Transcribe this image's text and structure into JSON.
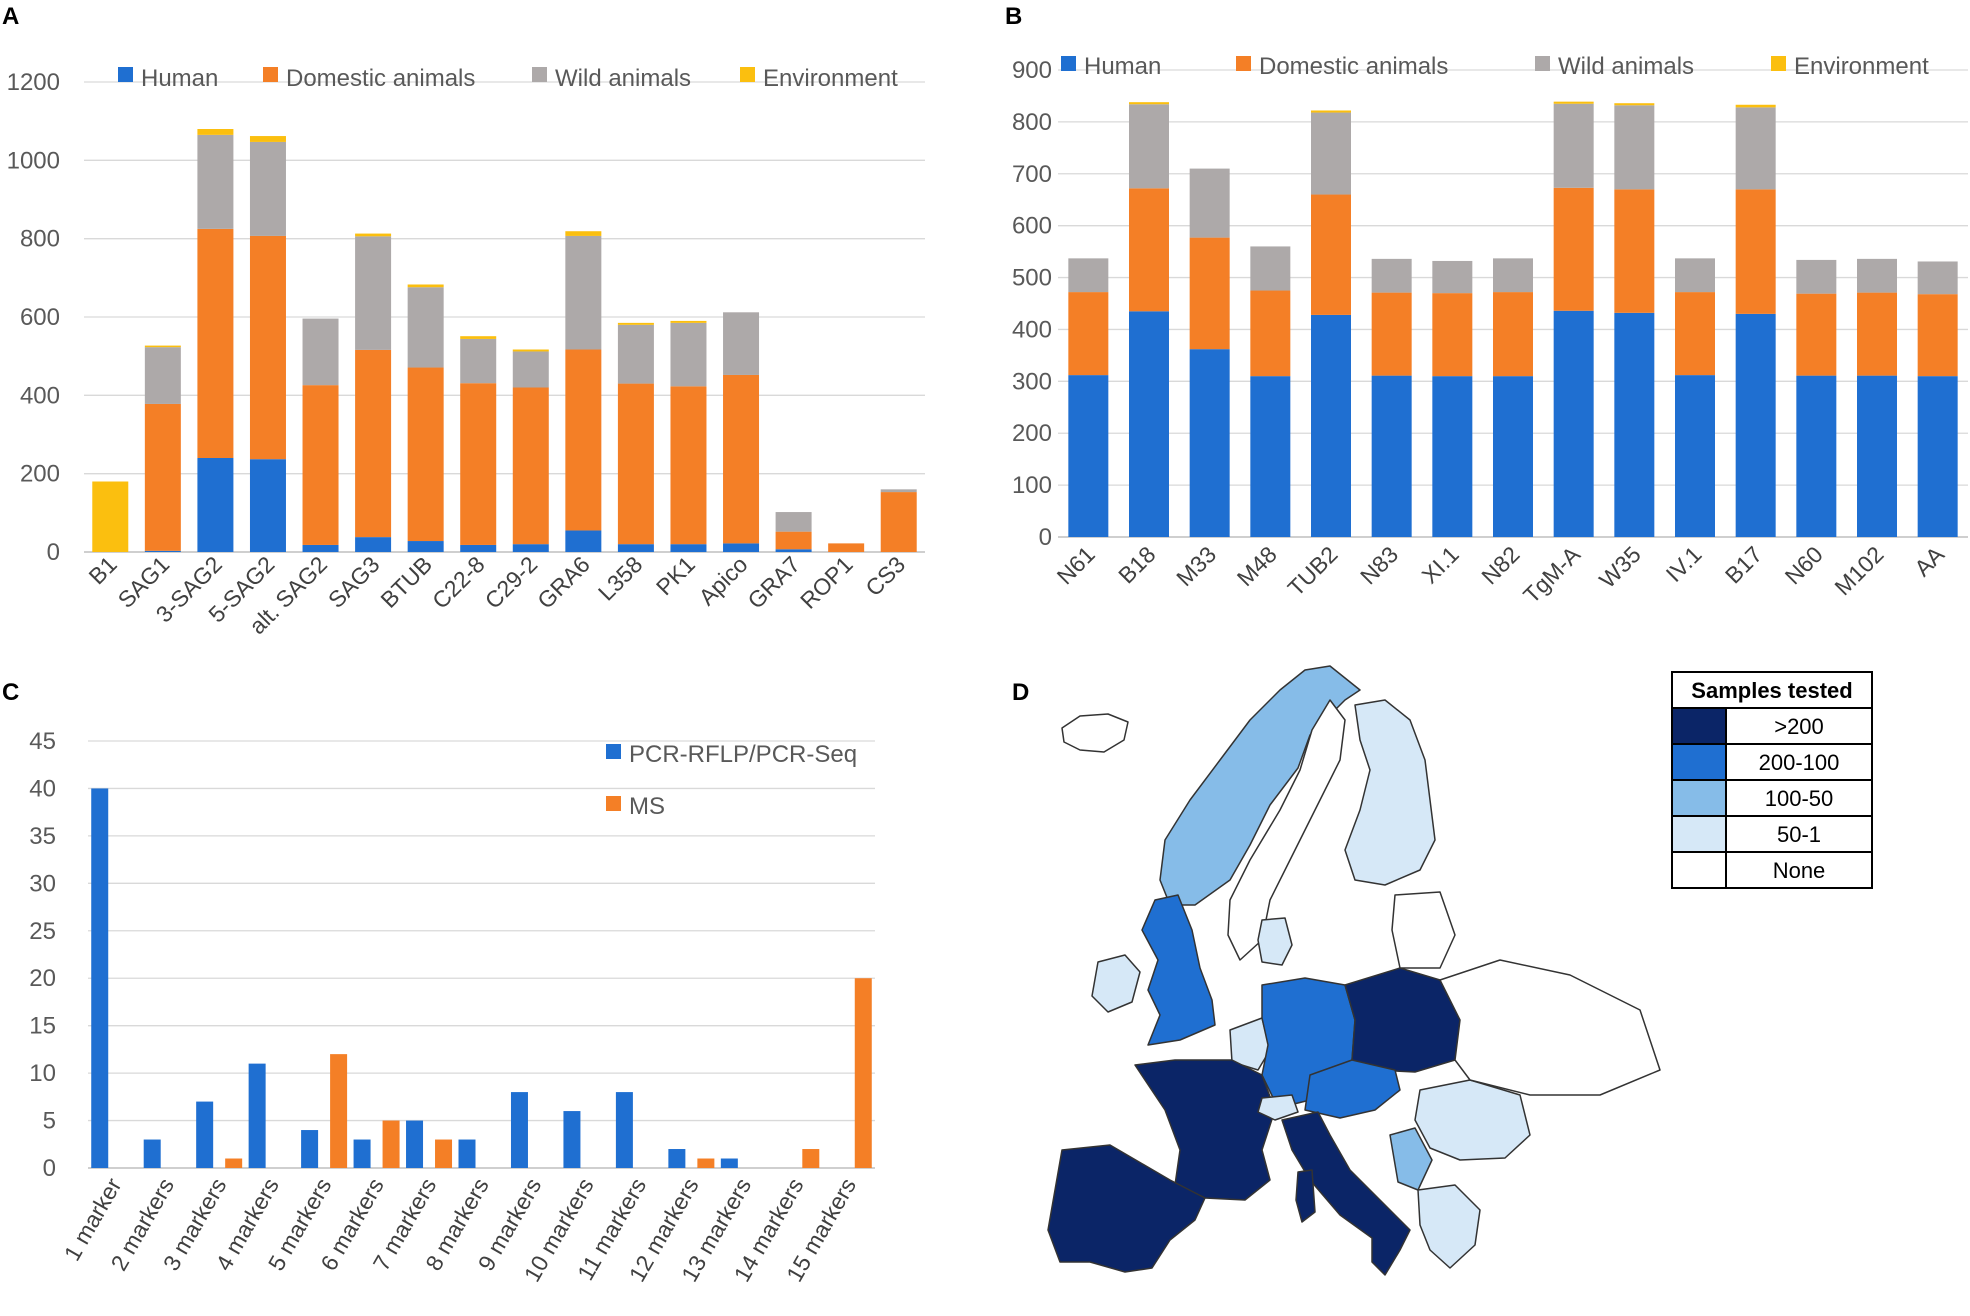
{
  "colors": {
    "human": "#1f6fd1",
    "domestic": "#f47f26",
    "wild": "#ada9a9",
    "environment": "#fbbf0f",
    "pcr": "#1f6fd1",
    "ms": "#f47f26",
    "map_gt200": "#0b2567",
    "map_200_100": "#1f6fd1",
    "map_100_50": "#86bce8",
    "map_50_1": "#d6e8f7",
    "map_none": "#ffffff"
  },
  "chart_data": [
    {
      "panel": "A",
      "type": "bar",
      "stacked": true,
      "ylim": [
        0,
        1200
      ],
      "yticks": [
        0,
        200,
        400,
        600,
        800,
        1000,
        1200
      ],
      "categories": [
        "B1",
        "SAG1",
        "3-SAG2",
        "5-SAG2",
        "alt. SAG2",
        "SAG3",
        "BTUB",
        "C22-8",
        "C29-2",
        "GRA6",
        "L358",
        "PK1",
        "Apico",
        "GRA7",
        "ROP1",
        "CS3"
      ],
      "series": [
        {
          "name": "Human",
          "key": "human",
          "values": [
            0,
            3,
            240,
            237,
            18,
            38,
            28,
            18,
            20,
            55,
            20,
            20,
            22,
            7,
            0,
            0
          ]
        },
        {
          "name": "Domestic animals",
          "key": "domestic",
          "values": [
            0,
            375,
            585,
            570,
            408,
            478,
            443,
            413,
            400,
            462,
            410,
            403,
            430,
            45,
            22,
            153
          ]
        },
        {
          "name": "Wild animals",
          "key": "wild",
          "values": [
            0,
            145,
            240,
            240,
            170,
            290,
            205,
            113,
            92,
            290,
            150,
            162,
            160,
            50,
            0,
            7
          ]
        },
        {
          "name": "Environment",
          "key": "environment",
          "values": [
            180,
            4,
            15,
            15,
            0,
            7,
            7,
            7,
            5,
            12,
            5,
            5,
            0,
            0,
            0,
            0
          ]
        }
      ]
    },
    {
      "panel": "B",
      "type": "bar",
      "stacked": true,
      "ylim": [
        0,
        900
      ],
      "yticks": [
        0,
        100,
        200,
        300,
        400,
        500,
        600,
        700,
        800,
        900
      ],
      "categories": [
        "N61",
        "B18",
        "M33",
        "M48",
        "TUB2",
        "N83",
        "XI.1",
        "N82",
        "TgM-A",
        "W35",
        "IV.1",
        "B17",
        "N60",
        "M102",
        "AA"
      ],
      "series": [
        {
          "name": "Human",
          "key": "human",
          "values": [
            312,
            435,
            362,
            310,
            428,
            311,
            310,
            310,
            436,
            432,
            312,
            430,
            311,
            311,
            310
          ]
        },
        {
          "name": "Domestic animals",
          "key": "domestic",
          "values": [
            160,
            237,
            215,
            165,
            232,
            160,
            160,
            162,
            237,
            238,
            160,
            240,
            158,
            160,
            158
          ]
        },
        {
          "name": "Wild animals",
          "key": "wild",
          "values": [
            65,
            162,
            133,
            85,
            158,
            65,
            62,
            65,
            162,
            162,
            65,
            158,
            65,
            65,
            63
          ]
        },
        {
          "name": "Environment",
          "key": "environment",
          "values": [
            0,
            4,
            0,
            0,
            4,
            0,
            0,
            0,
            4,
            4,
            0,
            5,
            0,
            0,
            0
          ]
        }
      ]
    },
    {
      "panel": "C",
      "type": "bar",
      "stacked": false,
      "ylim": [
        0,
        45
      ],
      "yticks": [
        0,
        5,
        10,
        15,
        20,
        25,
        30,
        35,
        40,
        45
      ],
      "categories": [
        "1 marker",
        "2 markers",
        "3 markers",
        "4 markers",
        "5 markers",
        "6 markers",
        "7 markers",
        "8 markers",
        "9 markers",
        "10 markers",
        "11 markers",
        "12 markers",
        "13 markers",
        "14 markers",
        "15 markers"
      ],
      "series": [
        {
          "name": "PCR-RFLP/PCR-Seq",
          "key": "pcr",
          "values": [
            40,
            3,
            7,
            11,
            4,
            3,
            5,
            3,
            8,
            6,
            8,
            2,
            1,
            0,
            0
          ]
        },
        {
          "name": "MS",
          "key": "ms",
          "values": [
            0,
            0,
            1,
            0,
            12,
            5,
            3,
            0,
            0,
            0,
            0,
            1,
            0,
            2,
            20
          ]
        }
      ]
    }
  ],
  "panels": {
    "a": "A",
    "b": "B",
    "c": "C",
    "d": "D"
  },
  "legend_a": [
    "Human",
    "Domestic animals",
    "Wild animals",
    "Environment"
  ],
  "legend_b": [
    "Human",
    "Domestic animals",
    "Wild animals",
    "Environment"
  ],
  "legend_c": [
    "PCR-RFLP/PCR-Seq",
    "MS"
  ],
  "map_legend": {
    "title": "Samples tested",
    "items": [
      ">200",
      "200-100",
      "100-50",
      "50-1",
      "None"
    ]
  }
}
